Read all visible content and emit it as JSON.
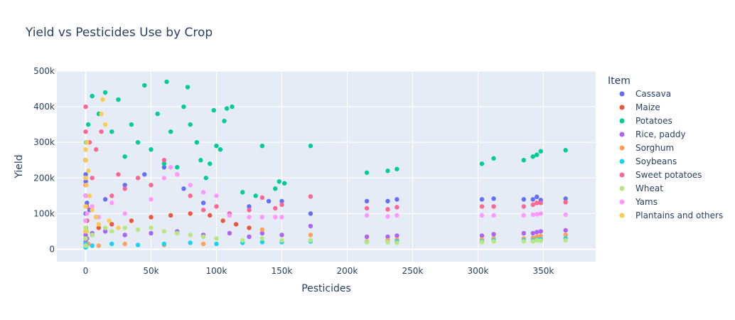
{
  "chart_data": {
    "type": "scatter",
    "title": "Yield vs Pesticides Use by Crop",
    "xlabel": "Pesticides",
    "ylabel": "Yield",
    "xlim": [
      -22000,
      390000
    ],
    "ylim": [
      -35000,
      500000
    ],
    "x_ticks": [
      0,
      50000,
      100000,
      150000,
      200000,
      250000,
      300000,
      350000
    ],
    "x_tick_labels": [
      "0",
      "50k",
      "100k",
      "150k",
      "200k",
      "250k",
      "300k",
      "350k"
    ],
    "y_ticks": [
      0,
      100000,
      200000,
      300000,
      400000,
      500000
    ],
    "y_tick_labels": [
      "0",
      "100k",
      "200k",
      "300k",
      "400k",
      "500k"
    ],
    "grid": true,
    "legend_title": "Item",
    "legend_position": "right",
    "series": [
      {
        "name": "Cassava",
        "color": "#636efa",
        "points": [
          [
            0,
            100000
          ],
          [
            0,
            150000
          ],
          [
            0,
            200000
          ],
          [
            5,
            80000
          ],
          [
            10,
            120000
          ],
          [
            20,
            150000
          ],
          [
            40,
            210000
          ],
          [
            60,
            250000
          ],
          [
            80,
            190000
          ],
          [
            1000,
            130000
          ],
          [
            3000,
            110000
          ],
          [
            8000,
            90000
          ],
          [
            15000,
            140000
          ],
          [
            30000,
            180000
          ],
          [
            45000,
            210000
          ],
          [
            60000,
            230000
          ],
          [
            75000,
            170000
          ],
          [
            90000,
            130000
          ],
          [
            110000,
            100000
          ],
          [
            125000,
            120000
          ],
          [
            140000,
            135000
          ],
          [
            150000,
            135000
          ],
          [
            172000,
            100000
          ],
          [
            215000,
            135000
          ],
          [
            231000,
            135000
          ],
          [
            238000,
            140000
          ],
          [
            303000,
            140000
          ],
          [
            312000,
            142000
          ],
          [
            335000,
            140000
          ],
          [
            342000,
            140000
          ],
          [
            345000,
            147000
          ],
          [
            348000,
            138000
          ],
          [
            367000,
            142000
          ]
        ]
      },
      {
        "name": "Maize",
        "color": "#ef553b",
        "points": [
          [
            0,
            10000
          ],
          [
            0,
            30000
          ],
          [
            0,
            50000
          ],
          [
            200,
            60000
          ],
          [
            1000,
            80000
          ],
          [
            5000,
            40000
          ],
          [
            10000,
            60000
          ],
          [
            20000,
            70000
          ],
          [
            35000,
            80000
          ],
          [
            50000,
            90000
          ],
          [
            65000,
            95000
          ],
          [
            80000,
            100000
          ],
          [
            95000,
            95000
          ],
          [
            105000,
            80000
          ],
          [
            115000,
            70000
          ],
          [
            125000,
            60000
          ]
        ]
      },
      {
        "name": "Potatoes",
        "color": "#00cc96",
        "points": [
          [
            0,
            50000
          ],
          [
            0,
            150000
          ],
          [
            0,
            250000
          ],
          [
            500,
            300000
          ],
          [
            2000,
            350000
          ],
          [
            5000,
            430000
          ],
          [
            10000,
            380000
          ],
          [
            15000,
            440000
          ],
          [
            20000,
            330000
          ],
          [
            25000,
            420000
          ],
          [
            30000,
            260000
          ],
          [
            35000,
            350000
          ],
          [
            40000,
            300000
          ],
          [
            45000,
            460000
          ],
          [
            50000,
            280000
          ],
          [
            55000,
            380000
          ],
          [
            60000,
            240000
          ],
          [
            62000,
            470000
          ],
          [
            65000,
            330000
          ],
          [
            70000,
            230000
          ],
          [
            75000,
            400000
          ],
          [
            78000,
            455000
          ],
          [
            80000,
            350000
          ],
          [
            85000,
            300000
          ],
          [
            88000,
            250000
          ],
          [
            92000,
            200000
          ],
          [
            95000,
            240000
          ],
          [
            98000,
            390000
          ],
          [
            100000,
            290000
          ],
          [
            103000,
            280000
          ],
          [
            106000,
            360000
          ],
          [
            108000,
            395000
          ],
          [
            112000,
            400000
          ],
          [
            120000,
            160000
          ],
          [
            130000,
            150000
          ],
          [
            135000,
            290000
          ],
          [
            145000,
            170000
          ],
          [
            148000,
            190000
          ],
          [
            152000,
            185000
          ],
          [
            172000,
            290000
          ],
          [
            215000,
            215000
          ],
          [
            231000,
            220000
          ],
          [
            238000,
            225000
          ],
          [
            303000,
            240000
          ],
          [
            312000,
            255000
          ],
          [
            335000,
            250000
          ],
          [
            342000,
            260000
          ],
          [
            345000,
            265000
          ],
          [
            348000,
            275000
          ],
          [
            367000,
            278000
          ]
        ]
      },
      {
        "name": "Rice, paddy",
        "color": "#ab63fa",
        "points": [
          [
            0,
            20000
          ],
          [
            0,
            40000
          ],
          [
            1000,
            30000
          ],
          [
            5000,
            45000
          ],
          [
            15000,
            50000
          ],
          [
            30000,
            40000
          ],
          [
            50000,
            45000
          ],
          [
            70000,
            50000
          ],
          [
            90000,
            40000
          ],
          [
            110000,
            45000
          ],
          [
            125000,
            35000
          ],
          [
            135000,
            45000
          ],
          [
            150000,
            40000
          ],
          [
            172000,
            65000
          ],
          [
            215000,
            35000
          ],
          [
            231000,
            35000
          ],
          [
            238000,
            38000
          ],
          [
            303000,
            38000
          ],
          [
            312000,
            42000
          ],
          [
            335000,
            45000
          ],
          [
            342000,
            45000
          ],
          [
            345000,
            48000
          ],
          [
            348000,
            50000
          ],
          [
            367000,
            53000
          ]
        ]
      },
      {
        "name": "Sorghum",
        "color": "#ffa15a",
        "points": [
          [
            0,
            5000
          ],
          [
            0,
            10000
          ],
          [
            2000,
            15000
          ],
          [
            10000,
            10000
          ],
          [
            30000,
            15000
          ],
          [
            60000,
            12000
          ],
          [
            90000,
            15000
          ],
          [
            120000,
            20000
          ],
          [
            135000,
            55000
          ],
          [
            150000,
            20000
          ],
          [
            172000,
            40000
          ],
          [
            215000,
            22000
          ],
          [
            231000,
            25000
          ],
          [
            238000,
            27000
          ],
          [
            303000,
            27000
          ],
          [
            312000,
            30000
          ],
          [
            335000,
            30000
          ],
          [
            342000,
            32000
          ],
          [
            345000,
            35000
          ],
          [
            348000,
            37000
          ],
          [
            367000,
            40000
          ]
        ]
      },
      {
        "name": "Soybeans",
        "color": "#19d3f3",
        "points": [
          [
            0,
            5000
          ],
          [
            0,
            15000
          ],
          [
            5000,
            10000
          ],
          [
            20000,
            15000
          ],
          [
            40000,
            12000
          ],
          [
            60000,
            15000
          ],
          [
            80000,
            18000
          ],
          [
            100000,
            15000
          ],
          [
            120000,
            18000
          ],
          [
            135000,
            20000
          ],
          [
            150000,
            20000
          ],
          [
            172000,
            22000
          ],
          [
            215000,
            20000
          ],
          [
            231000,
            20000
          ],
          [
            238000,
            22000
          ],
          [
            303000,
            22000
          ],
          [
            312000,
            25000
          ],
          [
            335000,
            25000
          ],
          [
            342000,
            25000
          ],
          [
            345000,
            27000
          ],
          [
            348000,
            28000
          ],
          [
            367000,
            30000
          ]
        ]
      },
      {
        "name": "Sweet potatoes",
        "color": "#ff6692",
        "points": [
          [
            0,
            400000
          ],
          [
            0,
            330000
          ],
          [
            0,
            250000
          ],
          [
            0,
            180000
          ],
          [
            1000,
            120000
          ],
          [
            3000,
            300000
          ],
          [
            5000,
            200000
          ],
          [
            8000,
            280000
          ],
          [
            12000,
            330000
          ],
          [
            20000,
            150000
          ],
          [
            25000,
            210000
          ],
          [
            30000,
            170000
          ],
          [
            40000,
            200000
          ],
          [
            50000,
            180000
          ],
          [
            60000,
            250000
          ],
          [
            70000,
            210000
          ],
          [
            80000,
            150000
          ],
          [
            90000,
            110000
          ],
          [
            100000,
            120000
          ],
          [
            110000,
            100000
          ],
          [
            125000,
            110000
          ],
          [
            135000,
            145000
          ],
          [
            145000,
            115000
          ],
          [
            150000,
            125000
          ],
          [
            172000,
            148000
          ],
          [
            215000,
            115000
          ],
          [
            231000,
            112000
          ],
          [
            238000,
            118000
          ],
          [
            303000,
            120000
          ],
          [
            312000,
            120000
          ],
          [
            335000,
            120000
          ],
          [
            342000,
            125000
          ],
          [
            345000,
            130000
          ],
          [
            348000,
            130000
          ],
          [
            367000,
            132000
          ]
        ]
      },
      {
        "name": "Wheat",
        "color": "#b6e880",
        "points": [
          [
            0,
            10000
          ],
          [
            0,
            30000
          ],
          [
            0,
            60000
          ],
          [
            1000,
            50000
          ],
          [
            5000,
            40000
          ],
          [
            10000,
            70000
          ],
          [
            15000,
            60000
          ],
          [
            20000,
            50000
          ],
          [
            30000,
            60000
          ],
          [
            40000,
            55000
          ],
          [
            50000,
            60000
          ],
          [
            60000,
            50000
          ],
          [
            70000,
            45000
          ],
          [
            80000,
            40000
          ],
          [
            90000,
            35000
          ],
          [
            100000,
            30000
          ],
          [
            120000,
            25000
          ],
          [
            135000,
            30000
          ],
          [
            150000,
            25000
          ],
          [
            172000,
            25000
          ],
          [
            215000,
            20000
          ],
          [
            231000,
            20000
          ],
          [
            238000,
            18000
          ],
          [
            303000,
            20000
          ],
          [
            312000,
            22000
          ],
          [
            335000,
            22000
          ],
          [
            342000,
            22000
          ],
          [
            345000,
            25000
          ],
          [
            348000,
            24000
          ],
          [
            367000,
            25000
          ]
        ]
      },
      {
        "name": "Yams",
        "color": "#ff97ff",
        "points": [
          [
            0,
            80000
          ],
          [
            0,
            150000
          ],
          [
            0,
            200000
          ],
          [
            1000,
            100000
          ],
          [
            5000,
            120000
          ],
          [
            10000,
            90000
          ],
          [
            20000,
            130000
          ],
          [
            30000,
            100000
          ],
          [
            50000,
            140000
          ],
          [
            60000,
            200000
          ],
          [
            65000,
            230000
          ],
          [
            70000,
            210000
          ],
          [
            80000,
            180000
          ],
          [
            90000,
            160000
          ],
          [
            100000,
            150000
          ],
          [
            110000,
            95000
          ],
          [
            125000,
            90000
          ],
          [
            135000,
            90000
          ],
          [
            145000,
            90000
          ],
          [
            150000,
            90000
          ],
          [
            215000,
            95000
          ],
          [
            231000,
            92000
          ],
          [
            238000,
            95000
          ],
          [
            303000,
            95000
          ],
          [
            312000,
            95000
          ],
          [
            335000,
            95000
          ],
          [
            342000,
            97000
          ],
          [
            345000,
            98000
          ],
          [
            348000,
            100000
          ],
          [
            367000,
            97000
          ]
        ]
      },
      {
        "name": "Plantains and others",
        "color": "#fecb52",
        "points": [
          [
            0,
            50000
          ],
          [
            0,
            120000
          ],
          [
            0,
            200000
          ],
          [
            0,
            280000
          ],
          [
            200,
            250000
          ],
          [
            500,
            180000
          ],
          [
            1000,
            300000
          ],
          [
            2000,
            220000
          ],
          [
            3000,
            150000
          ],
          [
            5000,
            110000
          ],
          [
            8000,
            90000
          ],
          [
            10000,
            70000
          ],
          [
            12000,
            380000
          ],
          [
            13000,
            420000
          ],
          [
            15000,
            350000
          ],
          [
            18000,
            80000
          ],
          [
            25000,
            60000
          ]
        ]
      }
    ]
  }
}
